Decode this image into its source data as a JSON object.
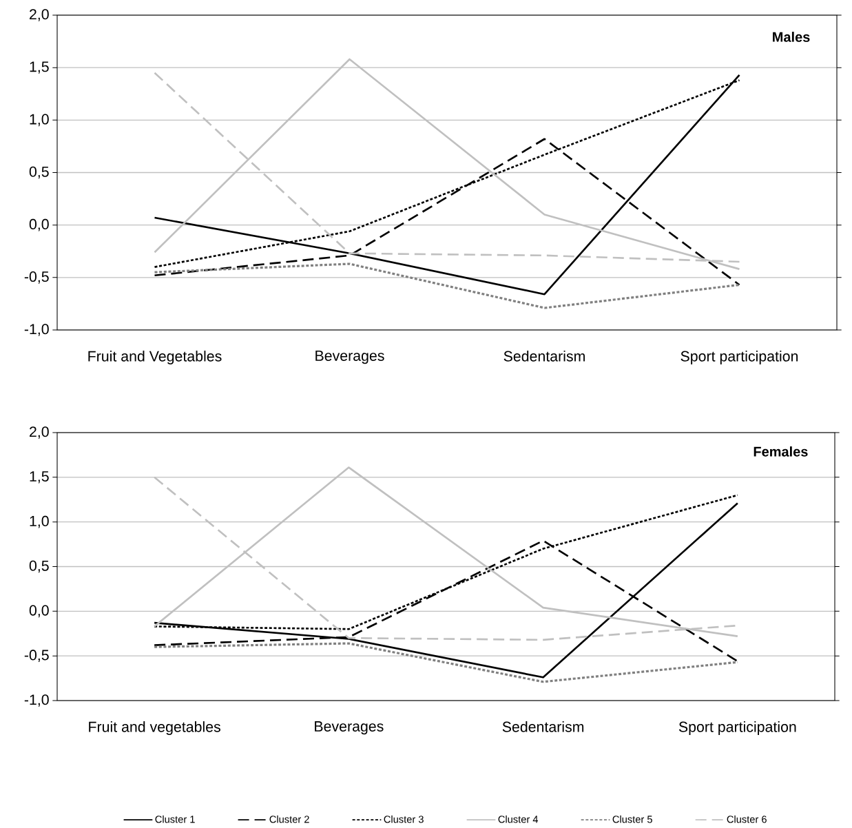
{
  "chart_data": [
    {
      "type": "line",
      "title": "Males",
      "categories": [
        "Fruit and Vegetables",
        "Beverages",
        "Sedentarism",
        "Sport participation"
      ],
      "ylim": [
        -1.0,
        2.0
      ],
      "yticks": [
        {
          "value": -1.0,
          "label": "-1,0"
        },
        {
          "value": -0.5,
          "label": "-0,5"
        },
        {
          "value": 0.0,
          "label": "0,0"
        },
        {
          "value": 0.5,
          "label": "0,5"
        },
        {
          "value": 1.0,
          "label": "1,0"
        },
        {
          "value": 1.5,
          "label": "1,5"
        },
        {
          "value": 2.0,
          "label": "2,0"
        }
      ],
      "grid": "y",
      "legend": false,
      "series": [
        {
          "color": "#000000",
          "line_style": "solid",
          "values": [
            0.07,
            -0.27,
            -0.66,
            1.43
          ]
        },
        {
          "color": "#000000",
          "line_style": "dashed",
          "values": [
            -0.48,
            -0.29,
            0.82,
            -0.57
          ]
        },
        {
          "color": "#000000",
          "line_style": "dotted",
          "values": [
            -0.4,
            -0.06,
            0.67,
            1.38
          ]
        },
        {
          "color": "#c0c0c0",
          "line_style": "solid",
          "values": [
            -0.26,
            1.58,
            0.1,
            -0.42
          ]
        },
        {
          "color": "#808080",
          "line_style": "dotted",
          "values": [
            -0.45,
            -0.37,
            -0.79,
            -0.57
          ]
        },
        {
          "color": "#c0c0c0",
          "line_style": "dashed",
          "values": [
            1.45,
            -0.27,
            -0.29,
            -0.35
          ]
        }
      ]
    },
    {
      "type": "line",
      "title": "Females",
      "categories": [
        "Fruit and vegetables",
        "Beverages",
        "Sedentarism",
        "Sport participation"
      ],
      "ylim": [
        -1.0,
        2.0
      ],
      "yticks": [
        {
          "value": -1.0,
          "label": "-1,0"
        },
        {
          "value": -0.5,
          "label": "-0,5"
        },
        {
          "value": 0.0,
          "label": "0,0"
        },
        {
          "value": 0.5,
          "label": "0,5"
        },
        {
          "value": 1.0,
          "label": "1,0"
        },
        {
          "value": 1.5,
          "label": "1,5"
        },
        {
          "value": 2.0,
          "label": "2,0"
        }
      ],
      "grid": "y",
      "legend": "bottom",
      "series": [
        {
          "name": "Cluster 1",
          "color": "#000000",
          "line_style": "solid",
          "values": [
            -0.13,
            -0.31,
            -0.74,
            1.21
          ]
        },
        {
          "name": "Cluster 2",
          "color": "#000000",
          "line_style": "dashed",
          "values": [
            -0.38,
            -0.29,
            0.79,
            -0.56
          ]
        },
        {
          "name": "Cluster 3",
          "color": "#000000",
          "line_style": "dotted",
          "values": [
            -0.17,
            -0.2,
            0.7,
            1.3
          ]
        },
        {
          "name": "Cluster 4",
          "color": "#c0c0c0",
          "line_style": "solid",
          "values": [
            -0.17,
            1.61,
            0.04,
            -0.28
          ]
        },
        {
          "name": "Cluster 5",
          "color": "#808080",
          "line_style": "dotted",
          "values": [
            -0.4,
            -0.36,
            -0.79,
            -0.57
          ]
        },
        {
          "name": "Cluster 6",
          "color": "#c0c0c0",
          "line_style": "dashed",
          "values": [
            1.5,
            -0.3,
            -0.32,
            -0.16
          ]
        }
      ]
    }
  ]
}
